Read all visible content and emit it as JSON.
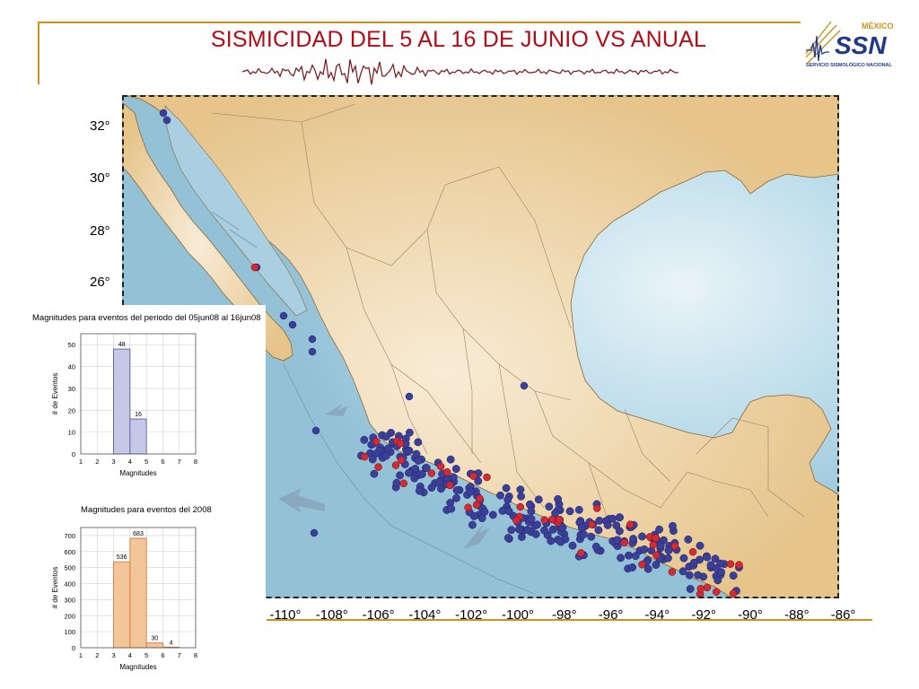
{
  "title": "SISMICIDAD DEL 5 AL 16 DE JUNIO VS ANUAL",
  "logo": {
    "country": "MÉXICO",
    "acronym": "SSN",
    "name": "SERVICIO SISMOLÓGICO NACIONAL",
    "icon": "seismograph-icon"
  },
  "colors": {
    "frame": "#c8941e",
    "title": "#b40a16",
    "sea": "#a9cfe0",
    "land": "#e8c992",
    "event_period": "#d42a35",
    "event_year": "#3b3f9a",
    "hist_period": "#c5c8e6",
    "hist_year": "#f3c69a"
  },
  "map": {
    "latitude_labels": [
      "32°",
      "30°",
      "28°",
      "26°"
    ],
    "longitude_labels": [
      "-110°",
      "-108°",
      "-106°",
      "-104°",
      "-102°",
      "-100°",
      "-98°",
      "-96°",
      "-94°",
      "-92°",
      "-90°",
      "-88°",
      "-86°"
    ]
  },
  "chart_data": [
    {
      "type": "bar",
      "title": "Magnitudes para eventos del periodo del 05jun08 al 16jun08",
      "xlabel": "Magnitudes",
      "ylabel": "# de Eventos",
      "x_ticks": [
        "1",
        "2",
        "3",
        "4",
        "5",
        "6",
        "7",
        "8"
      ],
      "y_ticks": [
        "0",
        "10",
        "20",
        "30",
        "40",
        "50"
      ],
      "ylim": [
        0,
        55
      ],
      "xlim": [
        1,
        8
      ],
      "bins": [
        {
          "from": 3,
          "to": 4,
          "value": 48
        },
        {
          "from": 4,
          "to": 5,
          "value": 16
        }
      ],
      "data_labels": [
        "48",
        "16"
      ],
      "grid": true
    },
    {
      "type": "bar",
      "title": "Magnitudes para eventos del 2008",
      "xlabel": "Magnitudes",
      "ylabel": "# de Eventos",
      "x_ticks": [
        "1",
        "2",
        "3",
        "4",
        "5",
        "6",
        "7",
        "8"
      ],
      "y_ticks": [
        "0",
        "100",
        "200",
        "300",
        "400",
        "500",
        "600",
        "700"
      ],
      "ylim": [
        0,
        750
      ],
      "xlim": [
        1,
        8
      ],
      "bins": [
        {
          "from": 3,
          "to": 4,
          "value": 536
        },
        {
          "from": 4,
          "to": 5,
          "value": 683
        },
        {
          "from": 5,
          "to": 6,
          "value": 30
        },
        {
          "from": 6,
          "to": 7,
          "value": 4
        }
      ],
      "data_labels": [
        "536",
        "683",
        "30",
        "4"
      ],
      "grid": true
    }
  ]
}
